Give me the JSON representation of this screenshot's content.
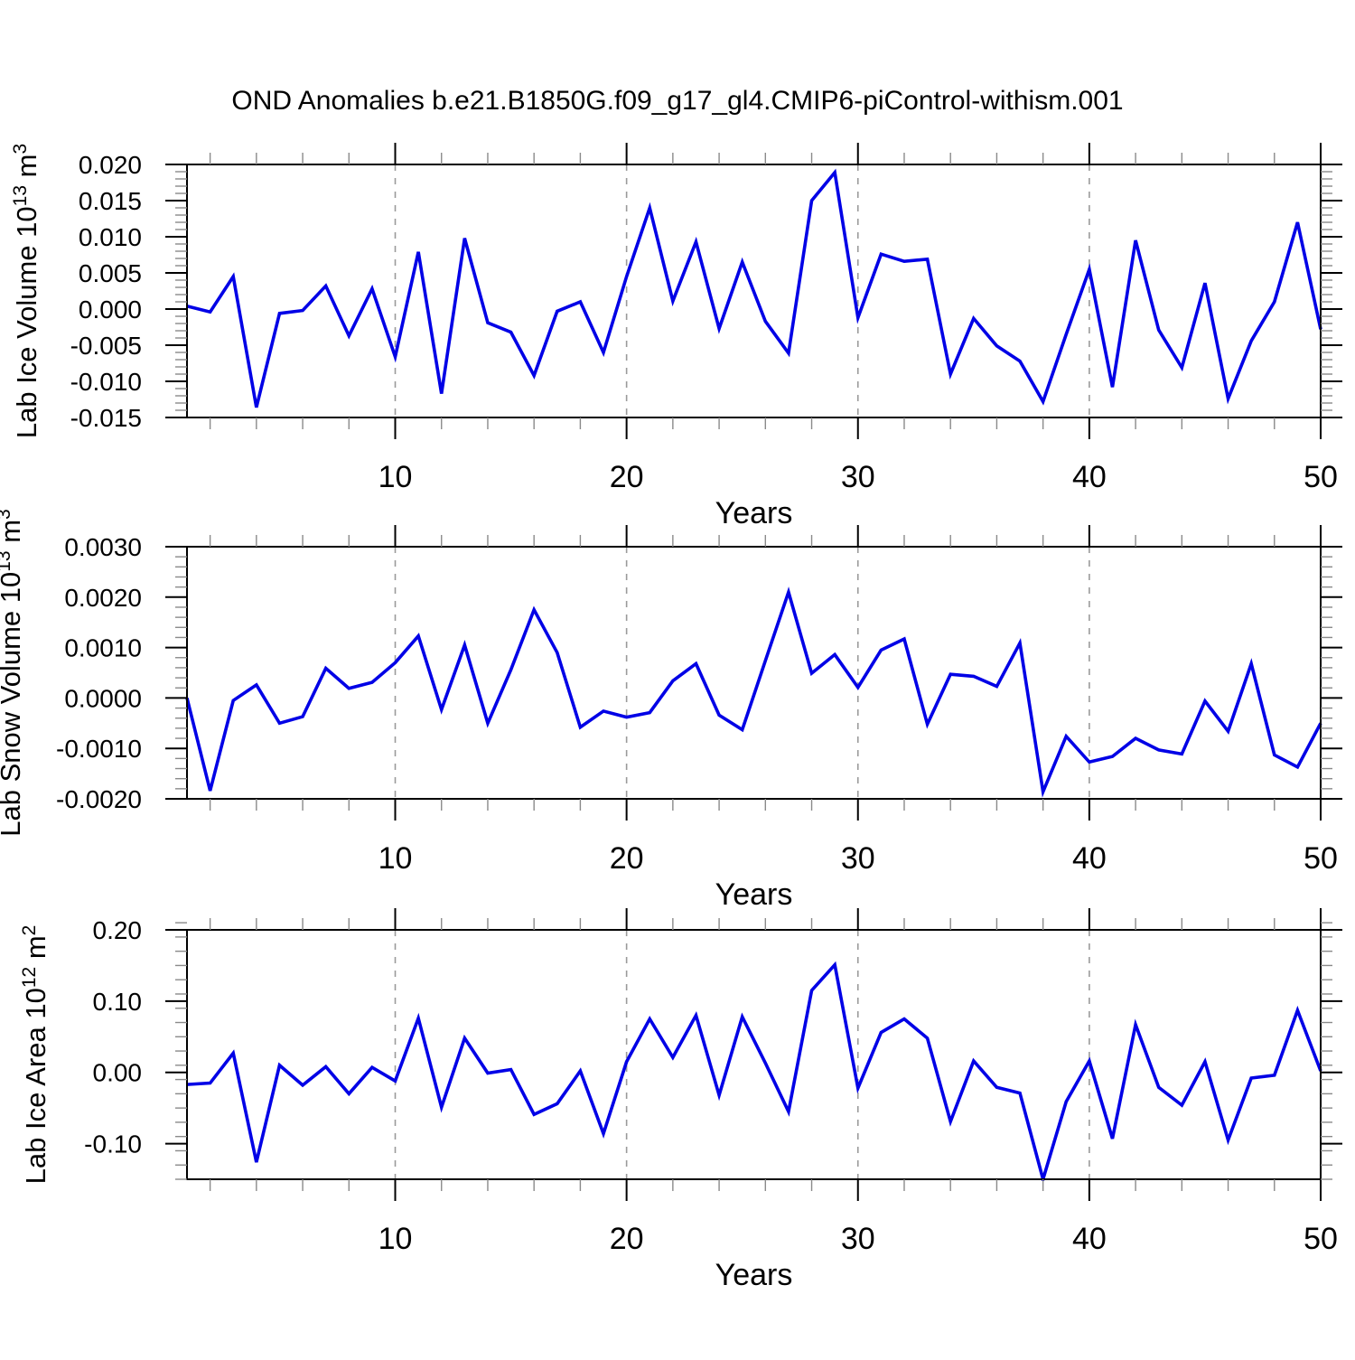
{
  "title": "OND Anomalies b.e21.B1850G.f09_g17_gl4.CMIP6-piControl-withism.001",
  "colors": {
    "line": "#0000e6",
    "axis": "#000000",
    "minor_tick": "#8a8a8a",
    "grid": "#9a9a9a",
    "text": "#000000"
  },
  "years": [
    1,
    2,
    3,
    4,
    5,
    6,
    7,
    8,
    9,
    10,
    11,
    12,
    13,
    14,
    15,
    16,
    17,
    18,
    19,
    20,
    21,
    22,
    23,
    24,
    25,
    26,
    27,
    28,
    29,
    30,
    31,
    32,
    33,
    34,
    35,
    36,
    37,
    38,
    39,
    40,
    41,
    42,
    43,
    44,
    45,
    46,
    47,
    48,
    49,
    50
  ],
  "chart_data": [
    {
      "type": "line",
      "name": "lab-ice-volume",
      "ylabel_text": "Lab Ice Volume 10^13 m^3",
      "ylabel_segments": [
        {
          "t": "Lab Ice Volume 10"
        },
        {
          "t": "13",
          "sup": true
        },
        {
          "t": " m"
        },
        {
          "t": "3",
          "sup": true
        }
      ],
      "xlabel": "Years",
      "xlim": [
        1,
        50
      ],
      "ylim": [
        -0.015,
        0.02
      ],
      "xticks_major": [
        10,
        20,
        30,
        40,
        50
      ],
      "xtick_labels": [
        "10",
        "20",
        "30",
        "40",
        "50"
      ],
      "xminor_step": 2,
      "grid_x": [
        10,
        20,
        30,
        40
      ],
      "ytick_values": [
        0.02,
        0.015,
        0.01,
        0.005,
        0.0,
        -0.005,
        -0.01,
        -0.015
      ],
      "ytick_labels": [
        "0.020",
        "0.015",
        "0.010",
        "0.005",
        "0.000",
        "-0.005",
        "-0.010",
        "-0.015"
      ],
      "yminor_step": 0.001,
      "values": [
        0.0004,
        -0.0004,
        0.0045,
        -0.0136,
        -0.0006,
        -0.0002,
        0.0032,
        -0.0037,
        0.0028,
        -0.0066,
        0.0079,
        -0.0117,
        0.0098,
        -0.0019,
        -0.0032,
        -0.0092,
        -0.0003,
        0.001,
        -0.006,
        0.0045,
        0.014,
        0.0011,
        0.0093,
        -0.0027,
        0.0065,
        -0.0017,
        -0.0061,
        0.015,
        0.0189,
        -0.0012,
        0.0076,
        0.0066,
        0.0069,
        -0.009,
        -0.0013,
        -0.0051,
        -0.0072,
        -0.0128,
        -0.0035,
        0.0055,
        -0.0108,
        0.0095,
        -0.0029,
        -0.0081,
        0.0036,
        -0.0124,
        -0.0044,
        0.001,
        0.012,
        -0.0028
      ]
    },
    {
      "type": "line",
      "name": "lab-snow-volume",
      "ylabel_text": "Lab Snow Volume 10^13 m^3",
      "ylabel_segments": [
        {
          "t": "Lab Snow Volume 10"
        },
        {
          "t": "13",
          "sup": true
        },
        {
          "t": " m"
        },
        {
          "t": "3",
          "sup": true
        }
      ],
      "xlabel": "Years",
      "xlim": [
        1,
        50
      ],
      "ylim": [
        -0.002,
        0.003
      ],
      "xticks_major": [
        10,
        20,
        30,
        40,
        50
      ],
      "xtick_labels": [
        "10",
        "20",
        "30",
        "40",
        "50"
      ],
      "xminor_step": 2,
      "grid_x": [
        10,
        20,
        30,
        40
      ],
      "ytick_values": [
        0.003,
        0.002,
        0.001,
        0.0,
        -0.001,
        -0.002
      ],
      "ytick_labels": [
        "0.0030",
        "0.0020",
        "0.0010",
        "0.0000",
        "-0.0010",
        "-0.0020"
      ],
      "yminor_step": 0.0002,
      "values": [
        0.0,
        -0.00184,
        -5e-05,
        0.00026,
        -0.0005,
        -0.00037,
        0.00059,
        0.00019,
        0.00031,
        0.0007,
        0.00123,
        -0.00023,
        0.00105,
        -0.0005,
        0.00056,
        0.00175,
        0.0009,
        -0.00058,
        -0.00026,
        -0.00038,
        -0.00029,
        0.00034,
        0.00068,
        -0.00034,
        -0.00063,
        0.00074,
        0.0021,
        0.00049,
        0.00086,
        0.00021,
        0.00095,
        0.00117,
        -0.00052,
        0.00047,
        0.00043,
        0.00023,
        0.00109,
        -0.00186,
        -0.00076,
        -0.00127,
        -0.00116,
        -0.0008,
        -0.00103,
        -0.00111,
        -6e-05,
        -0.00066,
        0.00068,
        -0.00113,
        -0.00137,
        -0.0005
      ]
    },
    {
      "type": "line",
      "name": "lab-ice-area",
      "ylabel_text": "Lab Ice Area 10^12 m^2",
      "ylabel_segments": [
        {
          "t": "Lab Ice Area 10"
        },
        {
          "t": "12",
          "sup": true
        },
        {
          "t": " m"
        },
        {
          "t": "2",
          "sup": true
        }
      ],
      "xlabel": "Years",
      "xlim": [
        1,
        50
      ],
      "ylim": [
        -0.15,
        0.2
      ],
      "xticks_major": [
        10,
        20,
        30,
        40,
        50
      ],
      "xtick_labels": [
        "10",
        "20",
        "30",
        "40",
        "50"
      ],
      "xminor_step": 2,
      "grid_x": [
        10,
        20,
        30,
        40
      ],
      "ytick_values": [
        0.2,
        0.1,
        0.0,
        -0.1
      ],
      "ytick_labels": [
        "0.20",
        "0.10",
        "0.00",
        "-0.10"
      ],
      "yminor_step": 0.02,
      "values": [
        -0.017,
        -0.015,
        0.027,
        -0.126,
        0.01,
        -0.018,
        0.008,
        -0.03,
        0.007,
        -0.012,
        0.076,
        -0.049,
        0.048,
        -0.001,
        0.004,
        -0.059,
        -0.044,
        0.002,
        -0.086,
        0.015,
        0.075,
        0.021,
        0.08,
        -0.032,
        0.078,
        0.013,
        -0.055,
        0.115,
        0.151,
        -0.022,
        0.056,
        0.075,
        0.048,
        -0.069,
        0.016,
        -0.021,
        -0.029,
        -0.15,
        -0.041,
        0.016,
        -0.093,
        0.067,
        -0.021,
        -0.046,
        0.015,
        -0.095,
        -0.008,
        -0.004,
        0.087,
        0.002
      ]
    }
  ]
}
